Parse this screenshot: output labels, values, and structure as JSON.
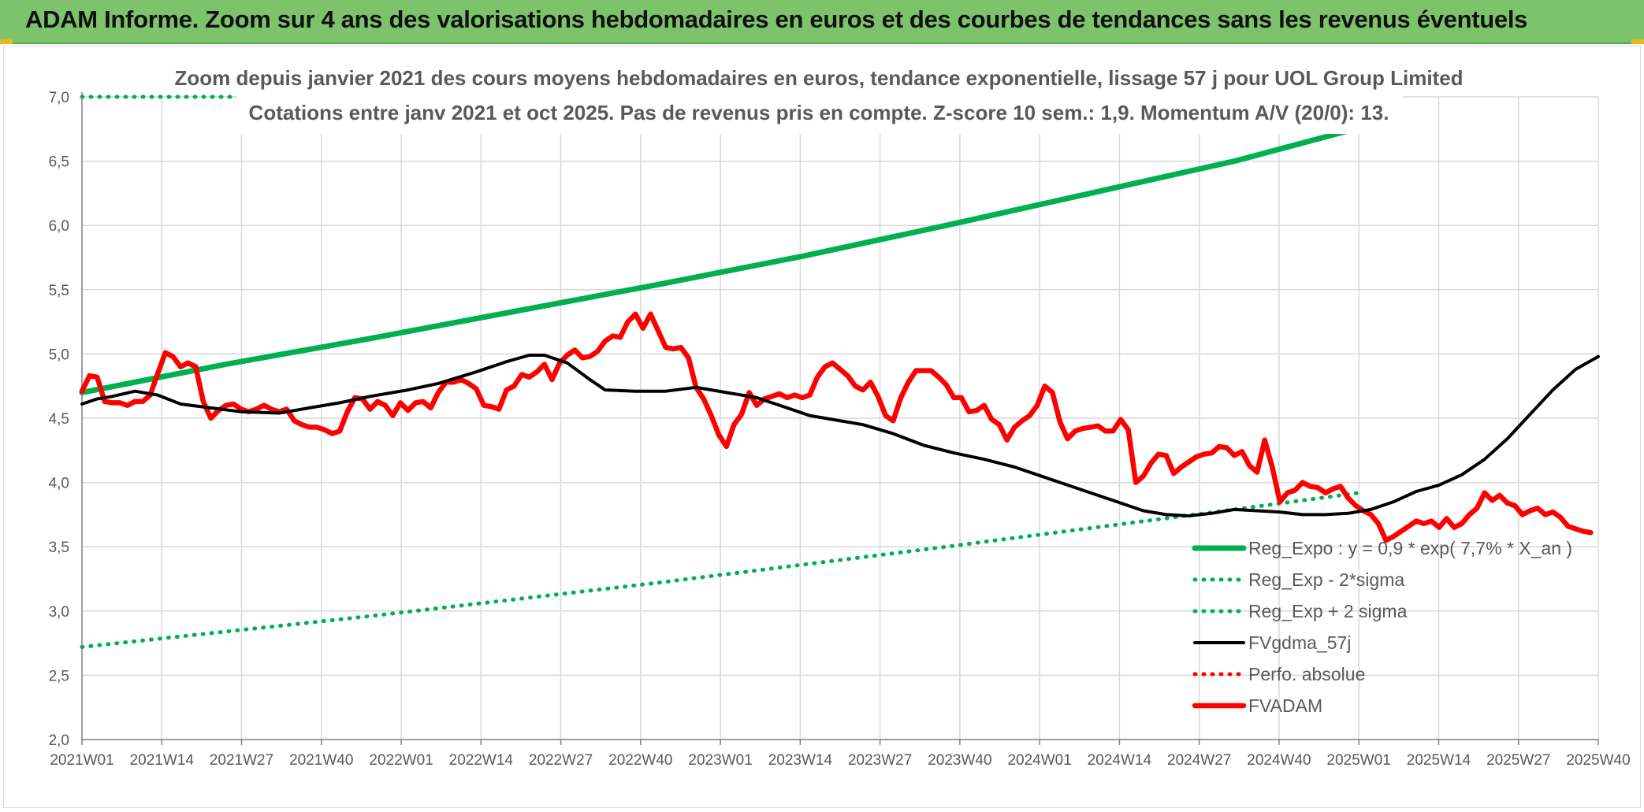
{
  "banner": {
    "title": "ADAM Informe. Zoom sur 4 ans des valorisations hebdomadaires en euros et des courbes de tendances sans les revenus éventuels"
  },
  "colors": {
    "banner_bg": "#7dc36b",
    "trend_green": "#00b050",
    "smooth_black": "#000000",
    "price_red": "#ff0000",
    "grid": "#d9d9d9",
    "text": "#595959"
  },
  "chart_data": {
    "type": "line",
    "title_lines": [
      "Zoom depuis janvier 2021 des cours moyens hebdomadaires en euros, tendance exponentielle, lissage 57 j pour UOL Group Limited",
      "Cotations entre janv 2021 et oct 2025. Pas de revenus pris en compte. Z-score 10 sem.: 1,9. Momentum A/V (20/0): 13."
    ],
    "x_tick_labels": [
      "2021W01",
      "2021W14",
      "2021W27",
      "2021W40",
      "2022W01",
      "2022W14",
      "2022W27",
      "2022W40",
      "2023W01",
      "2023W14",
      "2023W27",
      "2023W40",
      "2024W01",
      "2024W14",
      "2024W27",
      "2024W40",
      "2025W01",
      "2025W14",
      "2025W27",
      "2025W40"
    ],
    "y_tick_labels": [
      "2,0",
      "2,5",
      "3,0",
      "3,5",
      "4,0",
      "4,5",
      "5,0",
      "5,5",
      "6,0",
      "6,5",
      "7,0"
    ],
    "ylim": [
      2.0,
      7.0
    ],
    "y_step": 0.5,
    "grid": true,
    "legend_position": "bottom-right",
    "series": [
      {
        "name": "Reg_Expo : y = 0,9 * exp( 7,7% *  X_an )",
        "style": "solid-thick",
        "color": "#00b050",
        "points": [
          [
            0,
            4.7
          ],
          [
            38,
            4.92
          ],
          [
            76,
            5.12
          ],
          [
            114,
            5.33
          ],
          [
            152,
            5.54
          ],
          [
            190,
            5.76
          ],
          [
            228,
            6.0
          ],
          [
            266,
            6.25
          ],
          [
            304,
            6.5
          ],
          [
            337,
            6.76
          ]
        ]
      },
      {
        "name": "Reg_Exp - 2*sigma",
        "style": "dotted",
        "color": "#00b050",
        "points": [
          [
            0,
            2.72
          ],
          [
            76,
            2.96
          ],
          [
            152,
            3.22
          ],
          [
            228,
            3.5
          ],
          [
            304,
            3.79
          ],
          [
            337,
            3.92
          ]
        ]
      },
      {
        "name": "Reg_Exp + 2 sigma",
        "style": "dotted",
        "color": "#00b050",
        "points": [
          [
            0,
            7.0
          ],
          [
            337,
            7.0
          ]
        ]
      },
      {
        "name": "FVgdma_57j",
        "style": "solid",
        "color": "#000000",
        "points": [
          [
            0,
            4.61
          ],
          [
            4,
            4.65
          ],
          [
            8,
            4.67
          ],
          [
            14,
            4.71
          ],
          [
            20,
            4.68
          ],
          [
            26,
            4.61
          ],
          [
            34,
            4.58
          ],
          [
            42,
            4.55
          ],
          [
            52,
            4.54
          ],
          [
            60,
            4.58
          ],
          [
            68,
            4.62
          ],
          [
            76,
            4.67
          ],
          [
            86,
            4.72
          ],
          [
            94,
            4.77
          ],
          [
            104,
            4.86
          ],
          [
            112,
            4.94
          ],
          [
            118,
            4.99
          ],
          [
            122,
            4.99
          ],
          [
            128,
            4.93
          ],
          [
            134,
            4.8
          ],
          [
            138,
            4.72
          ],
          [
            146,
            4.71
          ],
          [
            154,
            4.71
          ],
          [
            162,
            4.74
          ],
          [
            170,
            4.7
          ],
          [
            178,
            4.66
          ],
          [
            186,
            4.58
          ],
          [
            192,
            4.52
          ],
          [
            198,
            4.49
          ],
          [
            206,
            4.45
          ],
          [
            214,
            4.38
          ],
          [
            222,
            4.29
          ],
          [
            230,
            4.23
          ],
          [
            238,
            4.18
          ],
          [
            246,
            4.12
          ],
          [
            252,
            4.06
          ],
          [
            258,
            4.0
          ],
          [
            264,
            3.94
          ],
          [
            272,
            3.86
          ],
          [
            280,
            3.78
          ],
          [
            286,
            3.75
          ],
          [
            292,
            3.74
          ],
          [
            298,
            3.76
          ],
          [
            304,
            3.79
          ],
          [
            310,
            3.78
          ],
          [
            316,
            3.77
          ],
          [
            322,
            3.75
          ],
          [
            328,
            3.75
          ],
          [
            334,
            3.76
          ],
          [
            340,
            3.79
          ],
          [
            346,
            3.85
          ],
          [
            352,
            3.93
          ],
          [
            358,
            3.98
          ],
          [
            364,
            4.06
          ],
          [
            370,
            4.18
          ],
          [
            376,
            4.34
          ],
          [
            382,
            4.53
          ],
          [
            388,
            4.72
          ],
          [
            394,
            4.88
          ],
          [
            400,
            4.98
          ]
        ]
      },
      {
        "name": "FVADAM",
        "style": "solid-thick",
        "color": "#ff0000",
        "points": [
          [
            0,
            4.71
          ],
          [
            2,
            4.83
          ],
          [
            4,
            4.82
          ],
          [
            6,
            4.63
          ],
          [
            8,
            4.62
          ],
          [
            10,
            4.62
          ],
          [
            12,
            4.6
          ],
          [
            14,
            4.63
          ],
          [
            16,
            4.63
          ],
          [
            18,
            4.68
          ],
          [
            20,
            4.85
          ],
          [
            22,
            5.01
          ],
          [
            24,
            4.98
          ],
          [
            26,
            4.9
          ],
          [
            28,
            4.93
          ],
          [
            30,
            4.9
          ],
          [
            32,
            4.63
          ],
          [
            34,
            4.5
          ],
          [
            36,
            4.56
          ],
          [
            38,
            4.6
          ],
          [
            40,
            4.61
          ],
          [
            42,
            4.57
          ],
          [
            44,
            4.55
          ],
          [
            46,
            4.57
          ],
          [
            48,
            4.6
          ],
          [
            50,
            4.57
          ],
          [
            52,
            4.55
          ],
          [
            54,
            4.57
          ],
          [
            56,
            4.48
          ],
          [
            58,
            4.45
          ],
          [
            60,
            4.43
          ],
          [
            62,
            4.43
          ],
          [
            64,
            4.41
          ],
          [
            66,
            4.38
          ],
          [
            68,
            4.4
          ],
          [
            70,
            4.55
          ],
          [
            72,
            4.66
          ],
          [
            74,
            4.65
          ],
          [
            76,
            4.57
          ],
          [
            78,
            4.63
          ],
          [
            80,
            4.6
          ],
          [
            82,
            4.52
          ],
          [
            84,
            4.62
          ],
          [
            86,
            4.56
          ],
          [
            88,
            4.62
          ],
          [
            90,
            4.63
          ],
          [
            92,
            4.58
          ],
          [
            94,
            4.7
          ],
          [
            96,
            4.78
          ],
          [
            98,
            4.78
          ],
          [
            100,
            4.8
          ],
          [
            102,
            4.77
          ],
          [
            104,
            4.73
          ],
          [
            106,
            4.6
          ],
          [
            108,
            4.59
          ],
          [
            110,
            4.57
          ],
          [
            112,
            4.72
          ],
          [
            114,
            4.75
          ],
          [
            116,
            4.84
          ],
          [
            118,
            4.82
          ],
          [
            120,
            4.86
          ],
          [
            122,
            4.92
          ],
          [
            124,
            4.8
          ],
          [
            126,
            4.93
          ],
          [
            128,
            4.99
          ],
          [
            130,
            5.03
          ],
          [
            132,
            4.97
          ],
          [
            134,
            4.98
          ],
          [
            136,
            5.02
          ],
          [
            138,
            5.1
          ],
          [
            140,
            5.14
          ],
          [
            142,
            5.13
          ],
          [
            144,
            5.25
          ],
          [
            146,
            5.31
          ],
          [
            148,
            5.2
          ],
          [
            150,
            5.31
          ],
          [
            152,
            5.18
          ],
          [
            154,
            5.05
          ],
          [
            156,
            5.04
          ],
          [
            158,
            5.05
          ],
          [
            160,
            4.97
          ],
          [
            162,
            4.74
          ],
          [
            164,
            4.65
          ],
          [
            166,
            4.52
          ],
          [
            168,
            4.37
          ],
          [
            170,
            4.28
          ],
          [
            172,
            4.45
          ],
          [
            174,
            4.53
          ],
          [
            176,
            4.7
          ],
          [
            178,
            4.6
          ],
          [
            180,
            4.65
          ],
          [
            182,
            4.67
          ],
          [
            184,
            4.69
          ],
          [
            186,
            4.66
          ],
          [
            188,
            4.68
          ],
          [
            190,
            4.66
          ],
          [
            192,
            4.68
          ],
          [
            194,
            4.82
          ],
          [
            196,
            4.9
          ],
          [
            198,
            4.93
          ],
          [
            200,
            4.88
          ],
          [
            202,
            4.83
          ],
          [
            204,
            4.75
          ],
          [
            206,
            4.72
          ],
          [
            208,
            4.78
          ],
          [
            210,
            4.67
          ],
          [
            212,
            4.52
          ],
          [
            214,
            4.48
          ],
          [
            216,
            4.66
          ],
          [
            218,
            4.78
          ],
          [
            220,
            4.87
          ],
          [
            222,
            4.87
          ],
          [
            224,
            4.87
          ],
          [
            226,
            4.82
          ],
          [
            228,
            4.76
          ],
          [
            230,
            4.66
          ],
          [
            232,
            4.66
          ],
          [
            234,
            4.55
          ],
          [
            236,
            4.56
          ],
          [
            238,
            4.6
          ],
          [
            240,
            4.49
          ],
          [
            242,
            4.45
          ],
          [
            244,
            4.33
          ],
          [
            246,
            4.43
          ],
          [
            248,
            4.48
          ],
          [
            250,
            4.52
          ],
          [
            252,
            4.6
          ],
          [
            254,
            4.75
          ],
          [
            256,
            4.7
          ],
          [
            258,
            4.47
          ],
          [
            260,
            4.34
          ],
          [
            262,
            4.4
          ],
          [
            264,
            4.42
          ],
          [
            266,
            4.43
          ],
          [
            268,
            4.44
          ],
          [
            270,
            4.4
          ],
          [
            272,
            4.4
          ],
          [
            274,
            4.49
          ],
          [
            276,
            4.41
          ],
          [
            278,
            4.0
          ],
          [
            280,
            4.05
          ],
          [
            282,
            4.15
          ],
          [
            284,
            4.22
          ],
          [
            286,
            4.21
          ],
          [
            288,
            4.07
          ],
          [
            290,
            4.12
          ],
          [
            292,
            4.16
          ],
          [
            294,
            4.2
          ],
          [
            296,
            4.22
          ],
          [
            298,
            4.23
          ],
          [
            300,
            4.28
          ],
          [
            302,
            4.27
          ],
          [
            304,
            4.21
          ],
          [
            306,
            4.24
          ],
          [
            308,
            4.13
          ],
          [
            310,
            4.08
          ],
          [
            312,
            4.33
          ],
          [
            314,
            4.12
          ],
          [
            316,
            3.85
          ],
          [
            318,
            3.92
          ],
          [
            320,
            3.94
          ],
          [
            322,
            4.0
          ],
          [
            324,
            3.97
          ],
          [
            326,
            3.96
          ],
          [
            328,
            3.92
          ],
          [
            330,
            3.95
          ],
          [
            332,
            3.97
          ],
          [
            334,
            3.88
          ],
          [
            336,
            3.82
          ],
          [
            338,
            3.78
          ],
          [
            340,
            3.75
          ],
          [
            342,
            3.68
          ],
          [
            344,
            3.55
          ],
          [
            346,
            3.58
          ],
          [
            348,
            3.62
          ],
          [
            350,
            3.66
          ],
          [
            352,
            3.7
          ],
          [
            354,
            3.68
          ],
          [
            356,
            3.7
          ],
          [
            358,
            3.65
          ],
          [
            360,
            3.72
          ],
          [
            362,
            3.65
          ],
          [
            364,
            3.68
          ],
          [
            366,
            3.75
          ],
          [
            368,
            3.8
          ],
          [
            370,
            3.92
          ],
          [
            372,
            3.86
          ],
          [
            374,
            3.9
          ],
          [
            376,
            3.84
          ],
          [
            378,
            3.82
          ],
          [
            380,
            3.75
          ],
          [
            382,
            3.78
          ],
          [
            384,
            3.8
          ],
          [
            386,
            3.75
          ],
          [
            388,
            3.77
          ],
          [
            390,
            3.73
          ],
          [
            392,
            3.66
          ],
          [
            394,
            3.64
          ],
          [
            396,
            3.62
          ],
          [
            398,
            3.61
          ]
        ]
      }
    ]
  }
}
